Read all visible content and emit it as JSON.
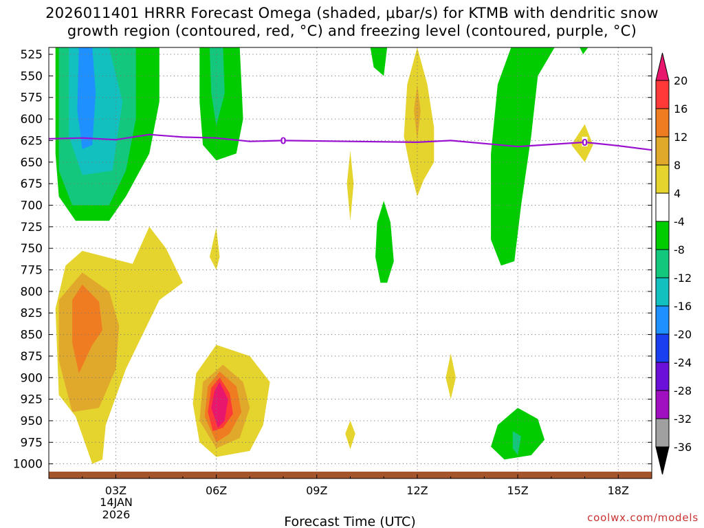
{
  "chart_data": {
    "type": "heatmap",
    "title_line1": "2026011401 HRRR Forecast Omega (shaded, μbar/s) for KTMB with dendritic snow",
    "title_line2": "growth region (contoured, red, °C) and freezing level (contoured, purple, °C)",
    "xlabel": "Forecast Time (UTC)",
    "ylabel": "",
    "x_ticks": [
      "03Z",
      "06Z",
      "09Z",
      "12Z",
      "15Z",
      "18Z"
    ],
    "x_tick_hours": [
      3,
      6,
      9,
      12,
      15,
      18
    ],
    "x_range_hours": [
      1,
      19
    ],
    "date_line1": "14JAN",
    "date_line2": "2026",
    "y_ticks": [
      "525",
      "550",
      "575",
      "600",
      "625",
      "650",
      "675",
      "700",
      "725",
      "750",
      "775",
      "800",
      "825",
      "850",
      "875",
      "900",
      "925",
      "950",
      "975",
      "1000"
    ],
    "y_range_mb": [
      517,
      1017
    ],
    "colorbar_labels": [
      "20",
      "16",
      "12",
      "8",
      "4",
      "-4",
      "-8",
      "-12",
      "-16",
      "-20",
      "-24",
      "-28",
      "-32",
      "-36"
    ],
    "colorbar_colors": [
      "#e8176d",
      "#ff3838",
      "#f07c22",
      "#e0a92c",
      "#e6d42e",
      "#ffffff",
      "#00cc00",
      "#13c87c",
      "#12c0c0",
      "#1e90ff",
      "#1a3ff0",
      "#6a10d8",
      "#a010c0",
      "#a0a0a0"
    ],
    "freezing_level_label": "0",
    "freezing_level": [
      [
        1.0,
        623
      ],
      [
        2.0,
        622
      ],
      [
        3.0,
        624
      ],
      [
        4.0,
        618
      ],
      [
        5.0,
        621
      ],
      [
        6.0,
        622
      ],
      [
        7.0,
        626
      ],
      [
        8.0,
        625
      ],
      [
        10.0,
        626
      ],
      [
        12.0,
        627
      ],
      [
        13.0,
        625
      ],
      [
        15.0,
        632
      ],
      [
        17.0,
        627
      ],
      [
        18.0,
        631
      ],
      [
        19.0,
        636
      ]
    ],
    "freezing_level_label_hours": [
      8.0,
      17.0
    ],
    "regions": [
      {
        "name": "omega-lt-minus4-upper-left",
        "color": "#00cc00",
        "pts": [
          [
            1.2,
            517
          ],
          [
            4.3,
            517
          ],
          [
            4.3,
            580
          ],
          [
            4.0,
            640
          ],
          [
            3.3,
            690
          ],
          [
            2.8,
            718
          ],
          [
            1.8,
            718
          ],
          [
            1.3,
            690
          ],
          [
            1.2,
            640
          ]
        ]
      },
      {
        "name": "omega-lt-minus8-upper-left",
        "color": "#13c87c",
        "pts": [
          [
            1.3,
            517
          ],
          [
            3.6,
            517
          ],
          [
            3.6,
            600
          ],
          [
            3.3,
            660
          ],
          [
            2.8,
            700
          ],
          [
            1.7,
            700
          ],
          [
            1.3,
            660
          ]
        ]
      },
      {
        "name": "omega-lt-minus12-upper-left",
        "color": "#12c0c0",
        "pts": [
          [
            1.6,
            517
          ],
          [
            2.8,
            517
          ],
          [
            3.2,
            580
          ],
          [
            2.9,
            660
          ],
          [
            2.0,
            665
          ],
          [
            1.6,
            620
          ]
        ]
      },
      {
        "name": "omega-lt-minus16-upper-left",
        "color": "#1e90ff",
        "pts": [
          [
            1.9,
            517
          ],
          [
            2.3,
            517
          ],
          [
            2.4,
            570
          ],
          [
            2.3,
            630
          ],
          [
            2.0,
            635
          ],
          [
            1.85,
            590
          ]
        ]
      },
      {
        "name": "omega-lt-minus4-06z",
        "color": "#00cc00",
        "pts": [
          [
            5.5,
            517
          ],
          [
            6.7,
            517
          ],
          [
            6.8,
            600
          ],
          [
            6.6,
            640
          ],
          [
            6.0,
            648
          ],
          [
            5.6,
            630
          ],
          [
            5.5,
            580
          ]
        ]
      },
      {
        "name": "omega-lt-minus8-06z",
        "color": "#13c87c",
        "pts": [
          [
            5.8,
            517
          ],
          [
            6.2,
            517
          ],
          [
            6.25,
            570
          ],
          [
            6.0,
            608
          ],
          [
            5.85,
            570
          ]
        ]
      },
      {
        "name": "omega-lt-minus4-11z",
        "color": "#00cc00",
        "pts": [
          [
            10.6,
            517
          ],
          [
            11.1,
            517
          ],
          [
            11.0,
            550
          ],
          [
            10.7,
            540
          ]
        ]
      },
      {
        "name": "omega-lt-minus4-14z",
        "color": "#00cc00",
        "pts": [
          [
            14.8,
            517
          ],
          [
            16.1,
            517
          ],
          [
            15.6,
            550
          ],
          [
            15.4,
            620
          ],
          [
            15.1,
            700
          ],
          [
            14.9,
            765
          ],
          [
            14.5,
            770
          ],
          [
            14.2,
            740
          ],
          [
            14.2,
            640
          ],
          [
            14.4,
            560
          ]
        ]
      },
      {
        "name": "omega-lt-minus4-mid",
        "color": "#00cc00",
        "pts": [
          [
            11.0,
            695
          ],
          [
            11.2,
            720
          ],
          [
            11.3,
            765
          ],
          [
            11.1,
            790
          ],
          [
            10.9,
            790
          ],
          [
            10.75,
            760
          ],
          [
            10.8,
            720
          ]
        ]
      },
      {
        "name": "omega-lt-minus4-17z-top",
        "color": "#00cc00",
        "pts": [
          [
            16.85,
            517
          ],
          [
            17.1,
            517
          ],
          [
            16.95,
            525
          ]
        ]
      },
      {
        "name": "omega-lt-minus4-15z-low",
        "color": "#00cc00",
        "pts": [
          [
            15.0,
            935
          ],
          [
            15.6,
            948
          ],
          [
            15.8,
            972
          ],
          [
            15.4,
            990
          ],
          [
            14.6,
            995
          ],
          [
            14.2,
            980
          ],
          [
            14.4,
            955
          ]
        ]
      },
      {
        "name": "omega-lt-minus8-15z-low",
        "color": "#13c87c",
        "pts": [
          [
            14.85,
            962
          ],
          [
            15.1,
            968
          ],
          [
            15.0,
            990
          ],
          [
            14.85,
            982
          ]
        ]
      },
      {
        "name": "omega-gt-4-12z",
        "color": "#e6d42e",
        "pts": [
          [
            12.0,
            517
          ],
          [
            12.3,
            560
          ],
          [
            12.5,
            610
          ],
          [
            12.5,
            650
          ],
          [
            12.2,
            670
          ],
          [
            12.0,
            690
          ],
          [
            11.8,
            660
          ],
          [
            11.6,
            620
          ],
          [
            11.7,
            560
          ]
        ]
      },
      {
        "name": "omega-gt-8-12z",
        "color": "#e0a92c",
        "pts": [
          [
            12.0,
            560
          ],
          [
            12.1,
            590
          ],
          [
            12.0,
            625
          ],
          [
            11.9,
            590
          ]
        ]
      },
      {
        "name": "omega-gt-4-10z",
        "color": "#e6d42e",
        "pts": [
          [
            10.0,
            637
          ],
          [
            10.1,
            675
          ],
          [
            10.0,
            718
          ],
          [
            9.9,
            675
          ]
        ]
      },
      {
        "name": "omega-gt-4-17z",
        "color": "#e6d42e",
        "pts": [
          [
            17.0,
            606
          ],
          [
            17.25,
            630
          ],
          [
            17.0,
            650
          ],
          [
            16.6,
            630
          ]
        ]
      },
      {
        "name": "omega-gt-4-lower-left",
        "color": "#e6d42e",
        "pts": [
          [
            2.0,
            753
          ],
          [
            3.5,
            768
          ],
          [
            4.0,
            725
          ],
          [
            4.5,
            750
          ],
          [
            5.0,
            790
          ],
          [
            4.3,
            810
          ],
          [
            3.3,
            890
          ],
          [
            2.7,
            955
          ],
          [
            2.6,
            995
          ],
          [
            2.3,
            1000
          ],
          [
            1.8,
            945
          ],
          [
            1.3,
            920
          ],
          [
            1.2,
            820
          ],
          [
            1.5,
            770
          ]
        ]
      },
      {
        "name": "omega-gt-8-lower-left",
        "color": "#e0a92c",
        "pts": [
          [
            2.0,
            778
          ],
          [
            2.8,
            800
          ],
          [
            3.1,
            840
          ],
          [
            3.0,
            890
          ],
          [
            2.5,
            935
          ],
          [
            1.7,
            940
          ],
          [
            1.3,
            880
          ],
          [
            1.3,
            810
          ]
        ]
      },
      {
        "name": "omega-gt-12-lower-left",
        "color": "#f07c22",
        "pts": [
          [
            2.0,
            792
          ],
          [
            2.5,
            812
          ],
          [
            2.6,
            845
          ],
          [
            2.3,
            862
          ],
          [
            1.9,
            895
          ],
          [
            1.7,
            860
          ],
          [
            1.7,
            810
          ]
        ]
      },
      {
        "name": "omega-gt-4-06z-upper",
        "color": "#e6d42e",
        "pts": [
          [
            6.0,
            726
          ],
          [
            6.1,
            760
          ],
          [
            6.0,
            775
          ],
          [
            5.8,
            760
          ]
        ]
      },
      {
        "name": "omega-gt-4-06z-lower",
        "color": "#e6d42e",
        "pts": [
          [
            6.0,
            862
          ],
          [
            7.0,
            875
          ],
          [
            7.6,
            905
          ],
          [
            7.4,
            955
          ],
          [
            7.0,
            985
          ],
          [
            6.0,
            992
          ],
          [
            5.5,
            975
          ],
          [
            5.3,
            930
          ],
          [
            5.4,
            895
          ]
        ]
      },
      {
        "name": "omega-gt-8-06z",
        "color": "#e0a92c",
        "pts": [
          [
            6.2,
            885
          ],
          [
            6.8,
            905
          ],
          [
            7.0,
            935
          ],
          [
            6.7,
            970
          ],
          [
            6.0,
            982
          ],
          [
            5.5,
            950
          ],
          [
            5.6,
            905
          ]
        ]
      },
      {
        "name": "omega-gt-12-06z",
        "color": "#f07c22",
        "pts": [
          [
            6.1,
            893
          ],
          [
            6.6,
            910
          ],
          [
            6.75,
            940
          ],
          [
            6.4,
            965
          ],
          [
            6.0,
            975
          ],
          [
            5.65,
            945
          ],
          [
            5.75,
            910
          ]
        ]
      },
      {
        "name": "omega-gt-16-06z",
        "color": "#ff3838",
        "pts": [
          [
            6.1,
            900
          ],
          [
            6.4,
            918
          ],
          [
            6.5,
            942
          ],
          [
            6.2,
            958
          ],
          [
            5.9,
            962
          ],
          [
            5.75,
            940
          ],
          [
            5.85,
            912
          ]
        ]
      },
      {
        "name": "omega-gt-20-06z",
        "color": "#e8176d",
        "pts": [
          [
            6.1,
            905
          ],
          [
            6.35,
            925
          ],
          [
            6.25,
            950
          ],
          [
            6.05,
            958
          ],
          [
            5.85,
            935
          ],
          [
            5.95,
            915
          ]
        ]
      },
      {
        "name": "omega-gt-4-13z",
        "color": "#e6d42e",
        "pts": [
          [
            13.0,
            872
          ],
          [
            13.15,
            900
          ],
          [
            13.0,
            925
          ],
          [
            12.85,
            900
          ]
        ]
      },
      {
        "name": "omega-gt-4-10z-low",
        "color": "#e6d42e",
        "pts": [
          [
            10.0,
            950
          ],
          [
            10.15,
            965
          ],
          [
            10.0,
            983
          ],
          [
            9.85,
            965
          ]
        ]
      }
    ]
  },
  "watermark": "coolwx.com/models"
}
